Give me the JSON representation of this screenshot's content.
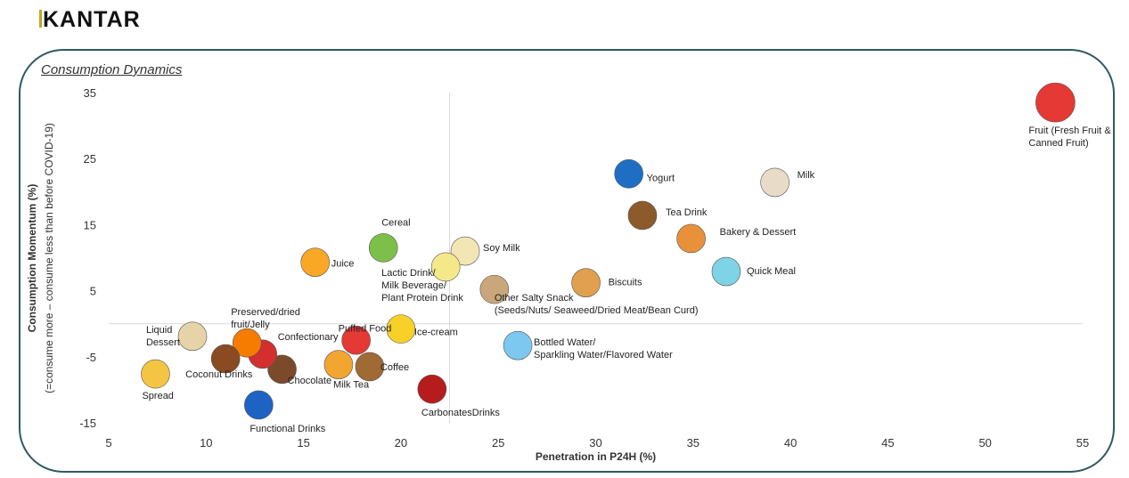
{
  "logo": "KANTAR",
  "title": "Consumption Dynamics",
  "chart_data": {
    "type": "scatter",
    "title": "Consumption Dynamics",
    "xlabel": "Penetration in P24H (%)",
    "ylabel": "Consumption Momentum (%)",
    "ylabel2": "(=consume more – consume less than before COVID-19)",
    "xlim": [
      5,
      55
    ],
    "ylim": [
      -15,
      35
    ],
    "xticks": [
      5,
      10,
      15,
      20,
      25,
      30,
      35,
      40,
      45,
      50,
      55
    ],
    "yticks": [
      35,
      25,
      15,
      5,
      -5,
      -15
    ],
    "reference_lines": {
      "x": 22.5,
      "y": 0
    },
    "grid": false,
    "points": [
      {
        "label": [
          "Fruit (Fresh Fruit &",
          "Canned Fruit)"
        ],
        "x": 53.6,
        "y": 33.5,
        "icon": "fruit-icon",
        "color": "#e53935"
      },
      {
        "label": [
          "Milk"
        ],
        "x": 39.2,
        "y": 21.4,
        "icon": "milk-jug-icon",
        "color": "#e8dcc8"
      },
      {
        "label": [
          "Yogurt"
        ],
        "x": 31.7,
        "y": 22.7,
        "icon": "yogurt-icon",
        "color": "#1e6fc4"
      },
      {
        "label": [
          "Tea Drink"
        ],
        "x": 32.4,
        "y": 16.4,
        "icon": "tea-cup-icon",
        "color": "#8d5a2b"
      },
      {
        "label": [
          "Bakery & Dessert"
        ],
        "x": 34.9,
        "y": 12.9,
        "icon": "bakery-icon",
        "color": "#e8903a"
      },
      {
        "label": [
          "Quick Meal"
        ],
        "x": 36.7,
        "y": 7.9,
        "icon": "noodle-icon",
        "color": "#7fd3e6"
      },
      {
        "label": [
          "Biscuits"
        ],
        "x": 29.5,
        "y": 6.2,
        "icon": "biscuit-icon",
        "color": "#e0a050"
      },
      {
        "label": [
          "Soy Milk"
        ],
        "x": 23.3,
        "y": 11.0,
        "icon": "soy-milk-icon",
        "color": "#f3e6b5"
      },
      {
        "label": [
          "Other Salty Snack",
          "(Seeds/Nuts/ Seaweed/Dried Meat/Bean Curd)"
        ],
        "x": 24.8,
        "y": 5.2,
        "icon": "nut-icon",
        "color": "#c9a77a"
      },
      {
        "label": [
          "Lactic Drink/",
          "Milk Beverage/",
          "Plant Protein Drink"
        ],
        "x": 22.3,
        "y": 8.6,
        "icon": "lactic-drink-icon",
        "color": "#f4e98a"
      },
      {
        "label": [
          "Cereal"
        ],
        "x": 19.1,
        "y": 11.5,
        "icon": "cereal-bowl-icon",
        "color": "#7cc04a"
      },
      {
        "label": [
          "Juice"
        ],
        "x": 15.6,
        "y": 9.3,
        "icon": "juice-icon",
        "color": "#f9a825"
      },
      {
        "label": [
          "Ice-cream"
        ],
        "x": 20.0,
        "y": -0.8,
        "icon": "ice-cream-icon",
        "color": "#f7d02a"
      },
      {
        "label": [
          "Puffed Food"
        ],
        "x": 17.7,
        "y": -2.5,
        "icon": "fries-icon",
        "color": "#e53935"
      },
      {
        "label": [
          "Bottled Water/",
          "Sparkling Water/Flavored Water"
        ],
        "x": 26.0,
        "y": -3.3,
        "icon": "water-bottle-icon",
        "color": "#7cc8f0"
      },
      {
        "label": [
          "Coffee"
        ],
        "x": 18.4,
        "y": -6.5,
        "icon": "coffee-cup-icon",
        "color": "#a06a35"
      },
      {
        "label": [
          "Milk Tea"
        ],
        "x": 16.8,
        "y": -6.2,
        "icon": "milk-tea-icon",
        "color": "#f2a531"
      },
      {
        "label": [
          "CarbonatesDrinks"
        ],
        "x": 21.6,
        "y": -9.9,
        "icon": "soda-bottle-icon",
        "color": "#b71c1c"
      },
      {
        "label": [
          "Functional Drinks"
        ],
        "x": 12.7,
        "y": -12.3,
        "icon": "sport-bottle-icon",
        "color": "#1e63c4"
      },
      {
        "label": [
          "Chocolate"
        ],
        "x": 13.9,
        "y": -6.9,
        "icon": "chocolate-icon",
        "color": "#7b4a2a"
      },
      {
        "label": [
          "Confectionary"
        ],
        "x": 12.9,
        "y": -4.6,
        "icon": "candy-icon",
        "color": "#d32f2f"
      },
      {
        "label": [
          "Preserved/dried",
          "fruit/Jelly"
        ],
        "x": 12.1,
        "y": -2.9,
        "icon": "orange-slice-icon",
        "color": "#f57c00"
      },
      {
        "label": [
          "Coconut Drinks"
        ],
        "x": 11.0,
        "y": -5.3,
        "icon": "coconut-icon",
        "color": "#8a4b22"
      },
      {
        "label": [
          "Liquid",
          "Dessert"
        ],
        "x": 9.3,
        "y": -1.9,
        "icon": "dessert-bowl-icon",
        "color": "#e6d3a8"
      },
      {
        "label": [
          "Spread"
        ],
        "x": 7.4,
        "y": -7.6,
        "icon": "spread-toast-icon",
        "color": "#f4c542"
      }
    ]
  }
}
